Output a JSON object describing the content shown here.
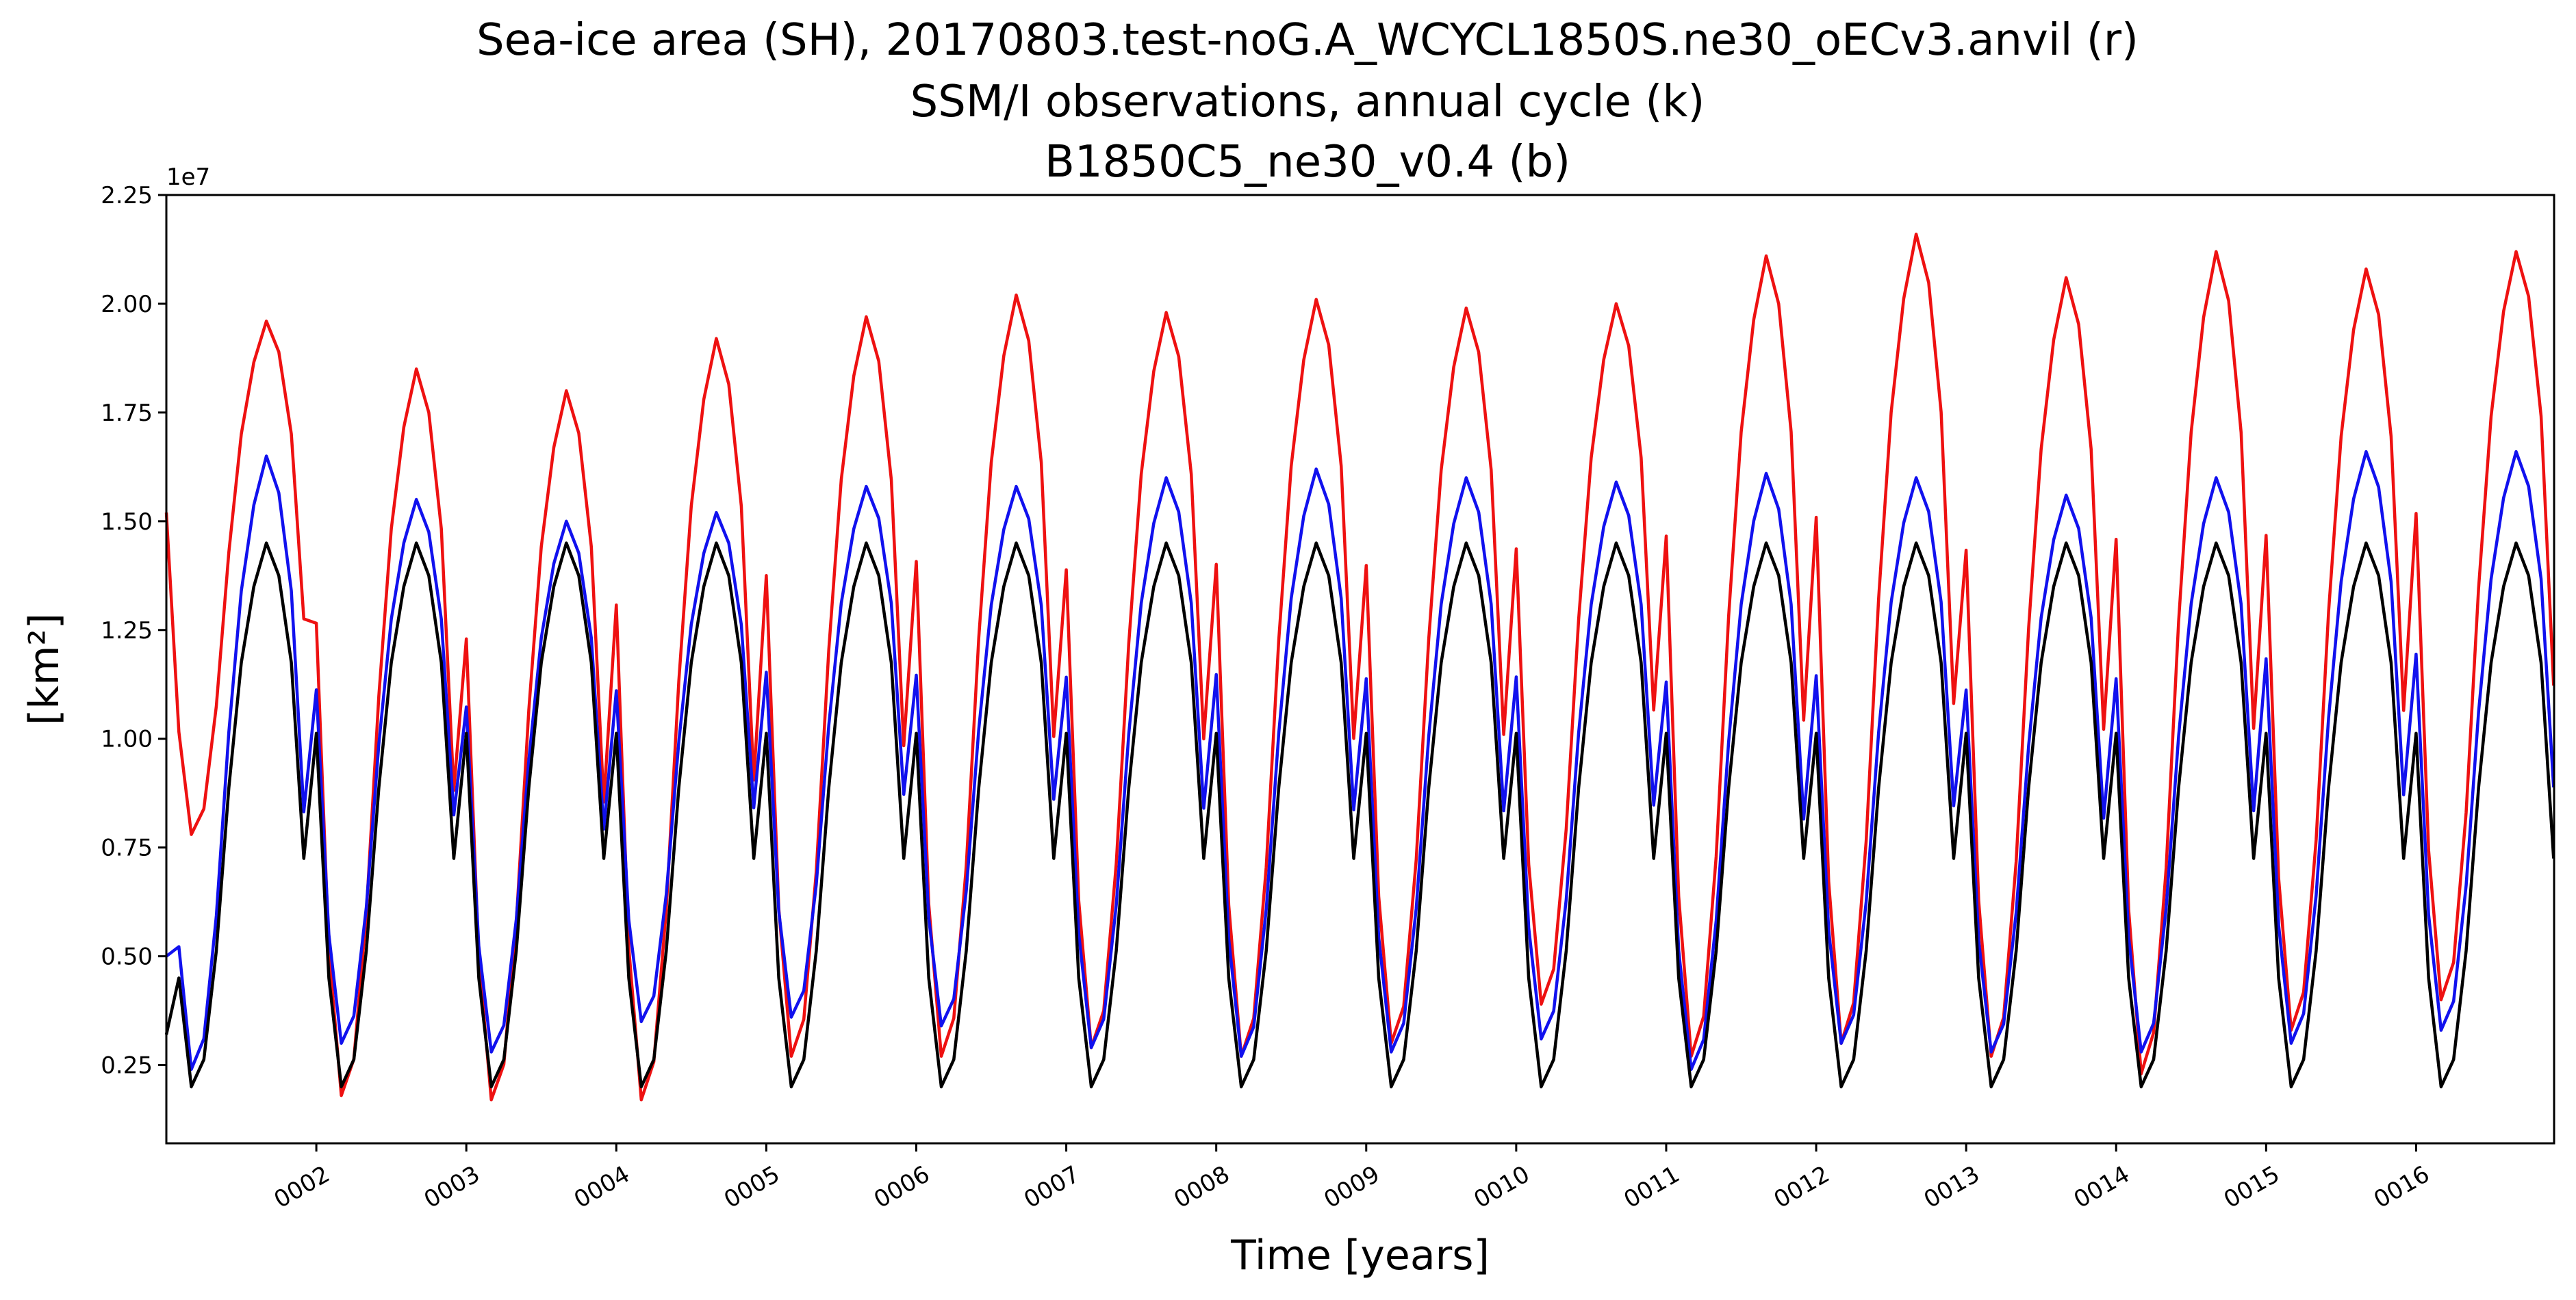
{
  "chart_data": {
    "type": "line",
    "title_lines": [
      "Sea-ice area (SH), 20170803.test-noG.A_WCYCL1850S.ne30_oECv3.anvil (r)",
      "SSM/I observations, annual cycle (k)",
      "B1850C5_ne30_v0.4 (b)"
    ],
    "xlabel": "Time [years]",
    "ylabel": "[km²]",
    "y_offset_text": "1e7",
    "xlim": [
      1.0,
      16.92
    ],
    "ylim": [
      0.07,
      2.25
    ],
    "ytick_values": [
      0.25,
      0.5,
      0.75,
      1.0,
      1.25,
      1.5,
      1.75,
      2.0,
      2.25
    ],
    "ytick_labels": [
      "0.25",
      "0.50",
      "0.75",
      "1.00",
      "1.25",
      "1.50",
      "1.75",
      "2.00",
      "2.25"
    ],
    "xtick_values": [
      2,
      3,
      4,
      5,
      6,
      7,
      8,
      9,
      10,
      11,
      12,
      13,
      14,
      15,
      16
    ],
    "xtick_labels": [
      "0002",
      "0003",
      "0004",
      "0005",
      "0006",
      "0007",
      "0008",
      "0009",
      "0010",
      "0011",
      "0012",
      "0013",
      "0014",
      "0015",
      "0016"
    ],
    "months_per_year": 12,
    "monthly_shape": [
      0.65,
      0.2,
      0.0,
      0.05,
      0.25,
      0.55,
      0.78,
      0.92,
      1.0,
      0.94,
      0.78,
      0.42
    ],
    "series": [
      {
        "color": "#ee1111",
        "start_value": 1.52,
        "min_per_year": [
          0.78,
          0.18,
          0.17,
          0.17,
          0.27,
          0.27,
          0.29,
          0.27,
          0.3,
          0.39,
          0.27,
          0.3,
          0.27,
          0.23,
          0.33,
          0.4
        ],
        "max_per_year": [
          1.96,
          1.85,
          1.8,
          1.92,
          1.97,
          2.02,
          1.98,
          2.01,
          1.99,
          2.0,
          2.11,
          2.16,
          2.06,
          2.12,
          2.08,
          2.12
        ]
      },
      {
        "color": "#1111ee",
        "start_value": 0.5,
        "min_per_year": [
          0.24,
          0.3,
          0.28,
          0.35,
          0.36,
          0.34,
          0.29,
          0.27,
          0.28,
          0.31,
          0.24,
          0.3,
          0.28,
          0.28,
          0.3,
          0.33
        ],
        "max_per_year": [
          1.65,
          1.55,
          1.5,
          1.52,
          1.58,
          1.58,
          1.6,
          1.62,
          1.6,
          1.59,
          1.61,
          1.6,
          1.56,
          1.6,
          1.66,
          1.66
        ]
      },
      {
        "color": "#000000",
        "start_value": 0.32,
        "min_per_year": [
          0.2,
          0.2,
          0.2,
          0.2,
          0.2,
          0.2,
          0.2,
          0.2,
          0.2,
          0.2,
          0.2,
          0.2,
          0.2,
          0.2,
          0.2,
          0.2
        ],
        "max_per_year": [
          1.45,
          1.45,
          1.45,
          1.45,
          1.45,
          1.45,
          1.45,
          1.45,
          1.45,
          1.45,
          1.45,
          1.45,
          1.45,
          1.45,
          1.45,
          1.45
        ]
      }
    ]
  }
}
